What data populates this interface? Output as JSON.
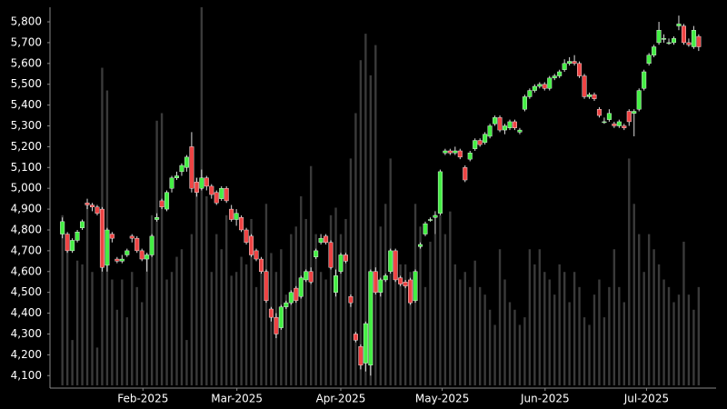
{
  "chart_data": {
    "type": "candlestick",
    "up_color": "#44ee44",
    "down_color": "#ee4444",
    "volume_color": "#3a3a3a",
    "ylim": [
      4040,
      5870
    ],
    "yticks": [
      {
        "value": 4100,
        "label": "4,100"
      },
      {
        "value": 4200,
        "label": "4,200"
      },
      {
        "value": 4300,
        "label": "4,300"
      },
      {
        "value": 4400,
        "label": "4,400"
      },
      {
        "value": 4500,
        "label": "4,500"
      },
      {
        "value": 4600,
        "label": "4,600"
      },
      {
        "value": 4700,
        "label": "4,700"
      },
      {
        "value": 4800,
        "label": "4,800"
      },
      {
        "value": 4900,
        "label": "4,900"
      },
      {
        "value": 5000,
        "label": "5,000"
      },
      {
        "value": 5100,
        "label": "5,100"
      },
      {
        "value": 5200,
        "label": "5,200"
      },
      {
        "value": 5300,
        "label": "5,300"
      },
      {
        "value": 5400,
        "label": "5,400"
      },
      {
        "value": 5500,
        "label": "5,500"
      },
      {
        "value": 5600,
        "label": "5,600"
      },
      {
        "value": 5700,
        "label": "5,700"
      },
      {
        "value": 5800,
        "label": "5,800"
      }
    ],
    "xlim": [
      -2.5,
      131.5
    ],
    "xticks": [
      {
        "value": 16.2,
        "label": "Feb-2025"
      },
      {
        "value": 35.1,
        "label": "Mar-2025"
      },
      {
        "value": 56.0,
        "label": "Apr-2025"
      },
      {
        "value": 76.4,
        "label": "May-2025"
      },
      {
        "value": 97.1,
        "label": "Jun-2025"
      },
      {
        "value": 117.5,
        "label": "Jul-2025"
      }
    ],
    "vlim": [
      0,
      100
    ],
    "ohlc": [
      [
        4780,
        4860,
        4760,
        4840
      ],
      [
        4780,
        4790,
        4690,
        4700
      ],
      [
        4700,
        4760,
        4690,
        4750
      ],
      [
        4750,
        4800,
        4740,
        4790
      ],
      [
        4810,
        4850,
        4800,
        4840
      ],
      [
        4930,
        4950,
        4900,
        4920
      ],
      [
        4920,
        4930,
        4890,
        4910
      ],
      [
        4910,
        4920,
        4870,
        4880
      ],
      [
        4900,
        4910,
        4600,
        4620
      ],
      [
        4630,
        4810,
        4600,
        4800
      ],
      [
        4780,
        4790,
        4740,
        4760
      ],
      [
        4660,
        4670,
        4640,
        4650
      ],
      [
        4650,
        4680,
        4640,
        4660
      ],
      [
        4680,
        4710,
        4670,
        4700
      ],
      [
        4770,
        4780,
        4740,
        4760
      ],
      [
        4760,
        4770,
        4690,
        4700
      ],
      [
        4700,
        4710,
        4650,
        4660
      ],
      [
        4660,
        4690,
        4600,
        4680
      ],
      [
        4680,
        4780,
        4670,
        4770
      ],
      [
        4850,
        4880,
        4840,
        4860
      ],
      [
        4940,
        4950,
        4900,
        4910
      ],
      [
        4900,
        4990,
        4890,
        4980
      ],
      [
        5000,
        5060,
        4980,
        5050
      ],
      [
        5050,
        5080,
        5040,
        5060
      ],
      [
        5080,
        5120,
        5060,
        5110
      ],
      [
        5100,
        5160,
        5080,
        5150
      ],
      [
        5200,
        5270,
        4980,
        5000
      ],
      [
        5030,
        5050,
        4960,
        4980
      ],
      [
        5000,
        5090,
        4990,
        5050
      ],
      [
        5050,
        5060,
        4990,
        5010
      ],
      [
        5010,
        5020,
        4950,
        4970
      ],
      [
        4980,
        4990,
        4920,
        4930
      ],
      [
        4950,
        5010,
        4940,
        5000
      ],
      [
        5000,
        5010,
        4930,
        4940
      ],
      [
        4900,
        4920,
        4840,
        4850
      ],
      [
        4850,
        4900,
        4820,
        4880
      ],
      [
        4860,
        4870,
        4790,
        4800
      ],
      [
        4800,
        4810,
        4730,
        4740
      ],
      [
        4770,
        4780,
        4670,
        4680
      ],
      [
        4700,
        4710,
        4650,
        4660
      ],
      [
        4660,
        4670,
        4590,
        4600
      ],
      [
        4600,
        4610,
        4450,
        4460
      ],
      [
        4420,
        4430,
        4360,
        4380
      ],
      [
        4380,
        4400,
        4280,
        4300
      ],
      [
        4330,
        4440,
        4320,
        4430
      ],
      [
        4430,
        4460,
        4420,
        4450
      ],
      [
        4450,
        4510,
        4440,
        4500
      ],
      [
        4520,
        4530,
        4450,
        4460
      ],
      [
        4480,
        4580,
        4470,
        4570
      ],
      [
        4560,
        4610,
        4550,
        4600
      ],
      [
        4600,
        4620,
        4540,
        4550
      ],
      [
        4670,
        4710,
        4660,
        4700
      ],
      [
        4740,
        4780,
        4730,
        4760
      ],
      [
        4770,
        4780,
        4730,
        4740
      ],
      [
        4740,
        4750,
        4610,
        4620
      ],
      [
        4500,
        4610,
        4480,
        4580
      ],
      [
        4600,
        4690,
        4590,
        4680
      ],
      [
        4680,
        4690,
        4640,
        4650
      ],
      [
        4480,
        4490,
        4430,
        4450
      ],
      [
        4300,
        4310,
        4260,
        4270
      ],
      [
        4240,
        4250,
        4130,
        4150
      ],
      [
        4160,
        4360,
        4120,
        4350
      ],
      [
        4150,
        4610,
        4100,
        4600
      ],
      [
        4600,
        4620,
        4490,
        4500
      ],
      [
        4500,
        4570,
        4480,
        4560
      ],
      [
        4560,
        4590,
        4550,
        4580
      ],
      [
        4600,
        4710,
        4590,
        4700
      ],
      [
        4700,
        4710,
        4550,
        4560
      ],
      [
        4570,
        4580,
        4530,
        4540
      ],
      [
        4550,
        4560,
        4520,
        4530
      ],
      [
        4560,
        4570,
        4440,
        4450
      ],
      [
        4460,
        4610,
        4450,
        4600
      ],
      [
        4720,
        4740,
        4710,
        4730
      ],
      [
        4780,
        4840,
        4770,
        4830
      ],
      [
        4850,
        4860,
        4840,
        4850
      ],
      [
        4860,
        4890,
        4780,
        4870
      ],
      [
        4880,
        5090,
        4870,
        5080
      ],
      [
        5170,
        5190,
        5160,
        5180
      ],
      [
        5180,
        5190,
        5160,
        5170
      ],
      [
        5170,
        5200,
        5160,
        5180
      ],
      [
        5180,
        5190,
        5140,
        5150
      ],
      [
        5100,
        5110,
        5030,
        5040
      ],
      [
        5140,
        5180,
        5130,
        5170
      ],
      [
        5190,
        5240,
        5180,
        5230
      ],
      [
        5230,
        5240,
        5200,
        5210
      ],
      [
        5220,
        5270,
        5210,
        5260
      ],
      [
        5250,
        5310,
        5240,
        5300
      ],
      [
        5310,
        5350,
        5300,
        5340
      ],
      [
        5340,
        5350,
        5270,
        5280
      ],
      [
        5280,
        5310,
        5260,
        5300
      ],
      [
        5290,
        5330,
        5280,
        5320
      ],
      [
        5320,
        5330,
        5280,
        5290
      ],
      [
        5270,
        5290,
        5260,
        5280
      ],
      [
        5380,
        5450,
        5370,
        5440
      ],
      [
        5440,
        5480,
        5430,
        5470
      ],
      [
        5470,
        5500,
        5460,
        5490
      ],
      [
        5490,
        5510,
        5480,
        5500
      ],
      [
        5500,
        5510,
        5470,
        5480
      ],
      [
        5480,
        5540,
        5470,
        5530
      ],
      [
        5530,
        5550,
        5520,
        5540
      ],
      [
        5540,
        5570,
        5530,
        5560
      ],
      [
        5570,
        5620,
        5560,
        5600
      ],
      [
        5600,
        5630,
        5590,
        5610
      ],
      [
        5610,
        5640,
        5590,
        5600
      ],
      [
        5600,
        5610,
        5530,
        5540
      ],
      [
        5540,
        5550,
        5430,
        5440
      ],
      [
        5440,
        5460,
        5430,
        5450
      ],
      [
        5450,
        5460,
        5420,
        5430
      ],
      [
        5380,
        5390,
        5340,
        5350
      ],
      [
        5320,
        5340,
        5310,
        5320
      ],
      [
        5330,
        5380,
        5320,
        5360
      ],
      [
        5310,
        5320,
        5290,
        5300
      ],
      [
        5300,
        5330,
        5290,
        5320
      ],
      [
        5300,
        5310,
        5280,
        5290
      ],
      [
        5370,
        5380,
        5300,
        5320
      ],
      [
        5360,
        5380,
        5250,
        5370
      ],
      [
        5380,
        5480,
        5370,
        5470
      ],
      [
        5480,
        5570,
        5470,
        5560
      ],
      [
        5600,
        5650,
        5590,
        5640
      ],
      [
        5640,
        5690,
        5630,
        5680
      ],
      [
        5700,
        5800,
        5690,
        5760
      ],
      [
        5720,
        5740,
        5700,
        5720
      ],
      [
        5700,
        5720,
        5690,
        5700
      ],
      [
        5700,
        5730,
        5690,
        5720
      ],
      [
        5780,
        5830,
        5760,
        5790
      ],
      [
        5780,
        5790,
        5690,
        5700
      ],
      [
        5700,
        5720,
        5680,
        5690
      ],
      [
        5680,
        5780,
        5670,
        5760
      ],
      [
        5730,
        5740,
        5660,
        5680
      ]
    ],
    "volume": [
      45,
      40,
      12,
      33,
      32,
      48,
      30,
      10,
      84,
      78,
      28,
      20,
      28,
      18,
      30,
      26,
      22,
      35,
      45,
      70,
      72,
      28,
      30,
      34,
      36,
      12,
      40,
      55,
      100,
      50,
      30,
      40,
      36,
      45,
      29,
      30,
      34,
      32,
      44,
      26,
      30,
      48,
      35,
      30,
      36,
      24,
      40,
      42,
      50,
      44,
      58,
      40,
      30,
      28,
      45,
      47,
      40,
      44,
      60,
      72,
      86,
      93,
      82,
      90,
      42,
      48,
      60,
      30,
      32,
      32,
      30,
      48,
      42,
      26,
      38,
      40,
      45,
      40,
      46,
      32,
      28,
      30,
      26,
      33,
      26,
      24,
      20,
      16,
      36,
      28,
      22,
      20,
      16,
      18,
      36,
      32,
      36,
      30,
      28,
      24,
      32,
      30,
      22,
      30,
      26,
      18,
      16,
      24,
      28,
      18,
      26,
      36,
      26,
      22,
      60,
      48,
      40,
      30,
      40,
      36,
      32,
      28,
      26,
      22,
      24,
      38,
      24,
      20,
      26
    ]
  }
}
